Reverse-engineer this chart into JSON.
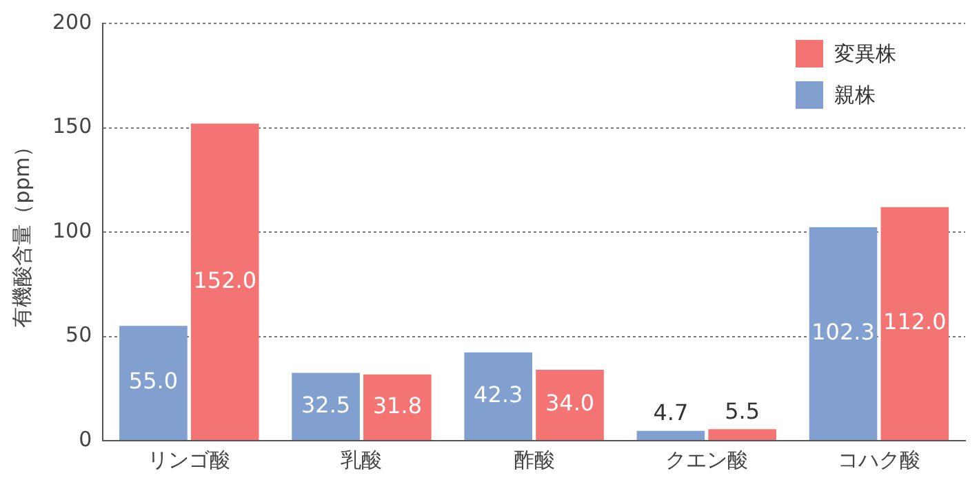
{
  "chart_data": {
    "type": "bar",
    "ylabel": "有機酸含量（ppm）",
    "categories": [
      "リンゴ酸",
      "乳酸",
      "酢酸",
      "クエン酸",
      "コハク酸"
    ],
    "series": [
      {
        "name": "親株",
        "color": "#819fcf",
        "values": [
          55.0,
          32.5,
          42.3,
          4.7,
          102.3
        ],
        "value_labels": [
          "55.0",
          "32.5",
          "42.3",
          "4.7",
          "102.3"
        ]
      },
      {
        "name": "変異株",
        "color": "#f47474",
        "values": [
          152.0,
          31.8,
          34.0,
          5.5,
          112.0
        ],
        "value_labels": [
          "152.0",
          "31.8",
          "34.0",
          "5.5",
          "112.0"
        ]
      }
    ],
    "ylim": [
      0,
      200
    ],
    "yticks": [
      0,
      50,
      100,
      150,
      200
    ],
    "grid": "y",
    "legend": "top right"
  }
}
